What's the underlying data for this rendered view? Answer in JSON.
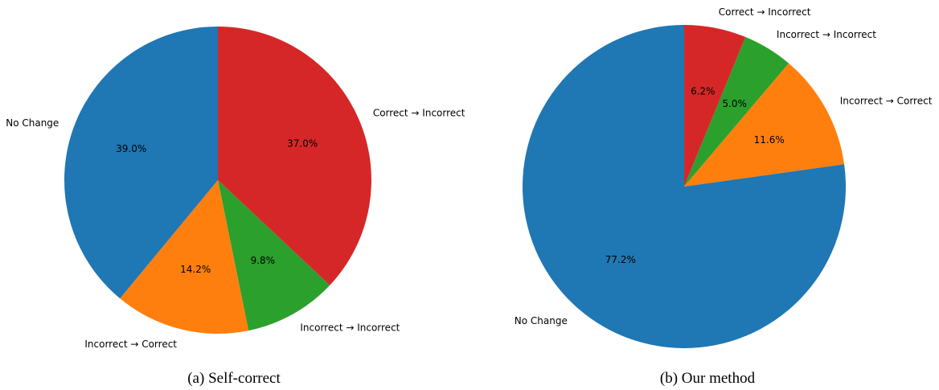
{
  "colors": {
    "No Change": "#1f77b4",
    "Correct → Incorrect": "#d62728",
    "Incorrect → Incorrect": "#2ca02c",
    "Incorrect → Correct": "#ff7f0e"
  },
  "chart_data": [
    {
      "type": "pie",
      "caption": "(a) Self-correct",
      "start_angle_deg": 90,
      "direction": "clockwise",
      "slices": [
        {
          "label": "Correct → Incorrect",
          "value": 37.0,
          "display": "37.0%"
        },
        {
          "label": "Incorrect → Incorrect",
          "value": 9.8,
          "display": "9.8%"
        },
        {
          "label": "Incorrect → Correct",
          "value": 14.2,
          "display": "14.2%"
        },
        {
          "label": "No Change",
          "value": 39.0,
          "display": "39.0%"
        }
      ]
    },
    {
      "type": "pie",
      "caption": "(b) Our method",
      "start_angle_deg": 90,
      "direction": "clockwise",
      "slices": [
        {
          "label": "Correct → Incorrect",
          "value": 6.2,
          "display": "6.2%"
        },
        {
          "label": "Incorrect → Incorrect",
          "value": 5.0,
          "display": "5.0%"
        },
        {
          "label": "Incorrect → Correct",
          "value": 11.6,
          "display": "11.6%"
        },
        {
          "label": "No Change",
          "value": 77.2,
          "display": "77.2%"
        }
      ]
    }
  ]
}
